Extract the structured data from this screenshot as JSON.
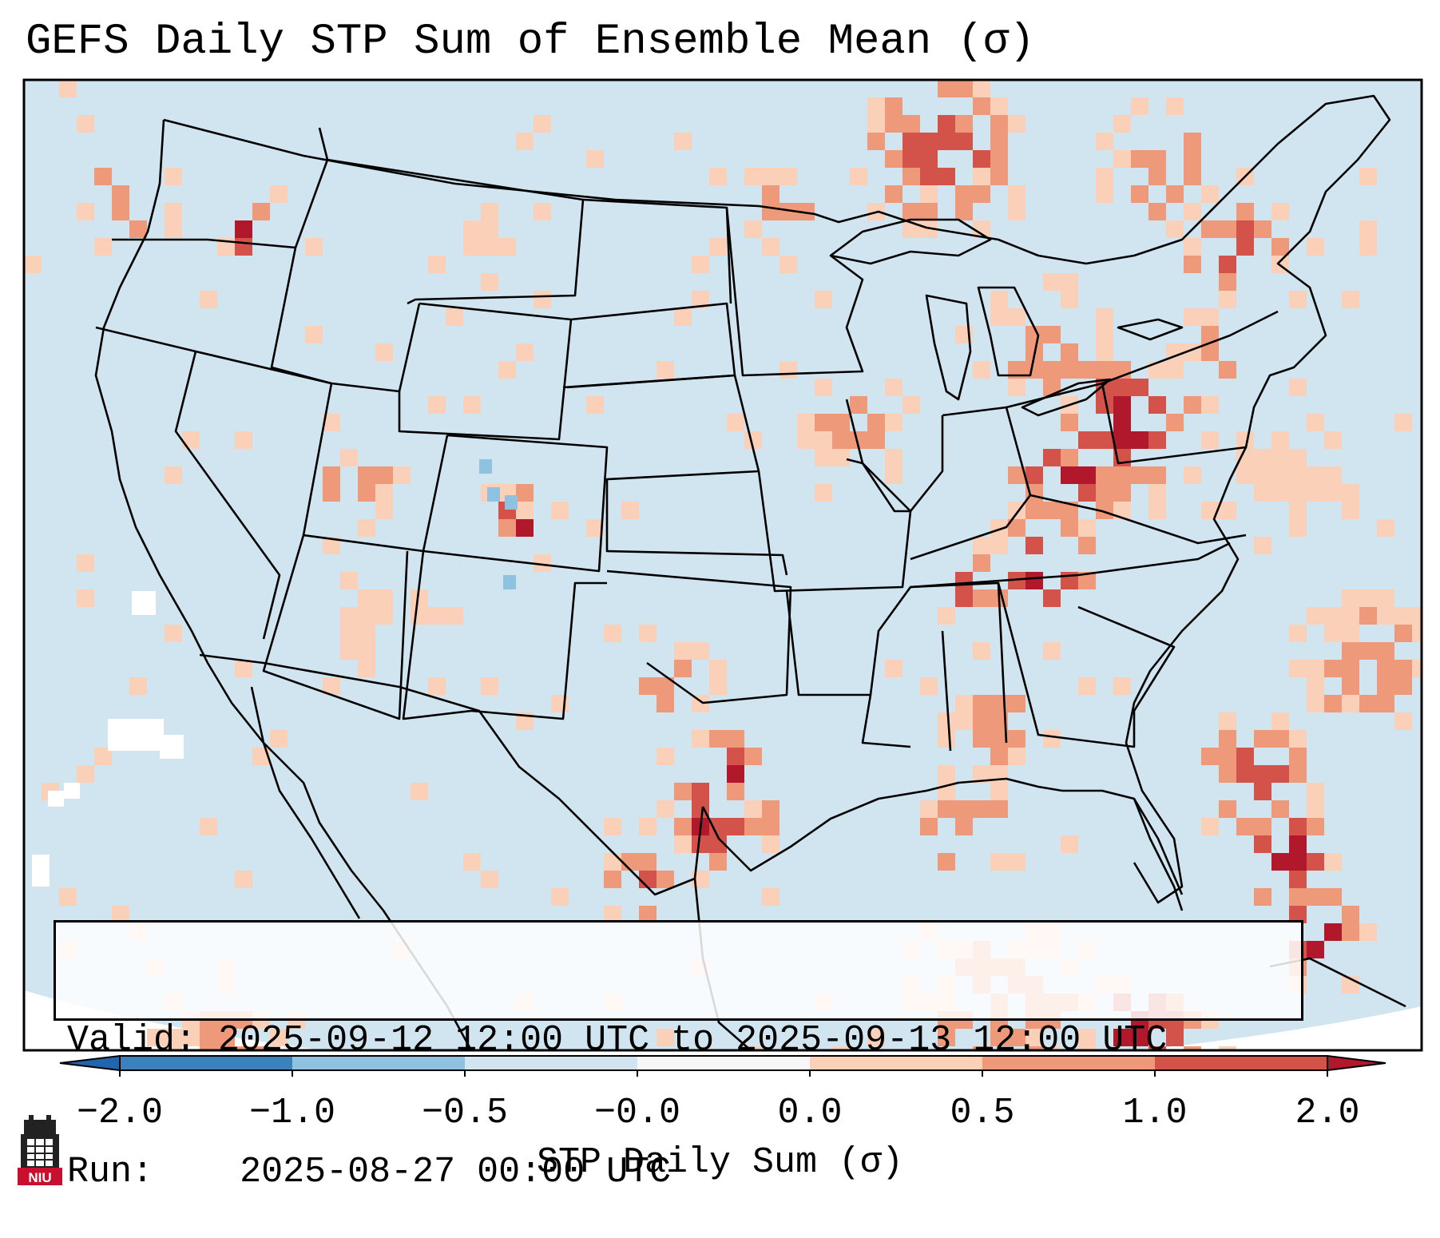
{
  "title": "GEFS Daily STP Sum of Ensemble Mean (σ)",
  "info": {
    "valid_label": "Valid:",
    "valid_text": "2025-09-12 12:00 UTC to 2025-09-13 12:00 UTC",
    "run_label": "Run:",
    "run_text": "2025-08-27 00:00 UTC"
  },
  "colorbar": {
    "label": "STP Daily Sum (σ)",
    "ticks": [
      "−2.0",
      "−1.0",
      "−0.5",
      "−0.0",
      "0.0",
      "0.5",
      "1.0",
      "2.0"
    ],
    "colors": [
      "#3b82bd",
      "#8fc2de",
      "#d1e5f0",
      "#f7f7f7",
      "#fbd0b9",
      "#ee9a7a",
      "#d3534a"
    ],
    "extend_low": "#2166ac",
    "extend_high": "#b2182b"
  },
  "map_colors": {
    "background": "#d1e5f0",
    "light": "#fbd0b9",
    "medium": "#ee9a7a",
    "dark": "#d3534a",
    "darkest": "#b2182b",
    "blue": "#8fc2de",
    "white": "#ffffff"
  },
  "logo": {
    "text": "NIU"
  }
}
